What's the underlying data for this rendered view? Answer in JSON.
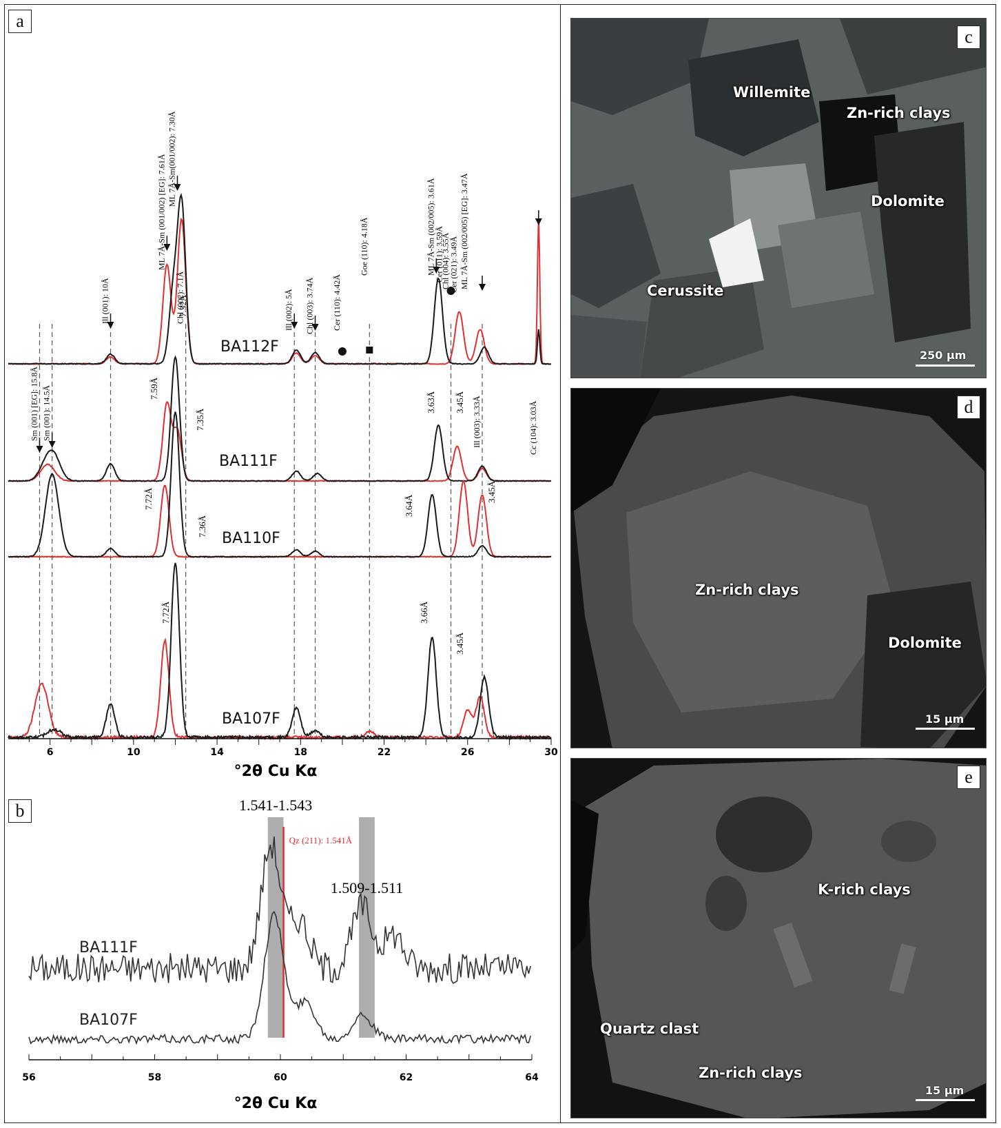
{
  "panel_labels": {
    "a": "a",
    "b": "b",
    "c": "c",
    "d": "d",
    "e": "e"
  },
  "chart_data": [
    {
      "panel": "a",
      "type": "line",
      "xlabel": "°2θ Cu Kα",
      "ylabel": "",
      "xlim": [
        4,
        30
      ],
      "xticks": [
        6,
        10,
        14,
        18,
        22,
        26,
        30
      ],
      "grid": false,
      "colors": {
        "air_dried": "#1a1a1a",
        "glycolated": "#e03030"
      },
      "series": [
        {
          "sample": "BA112F",
          "black_peaks": [
            [
              8.9,
              0.07
            ],
            [
              11.9,
              0.5
            ],
            [
              12.3,
              1.15
            ],
            [
              17.8,
              0.1
            ],
            [
              18.7,
              0.08
            ],
            [
              24.6,
              0.62
            ],
            [
              26.8,
              0.12
            ],
            [
              29.4,
              0.25
            ]
          ],
          "red_peaks": [
            [
              8.9,
              0.05
            ],
            [
              11.6,
              0.72
            ],
            [
              12.3,
              1.05
            ],
            [
              17.8,
              0.08
            ],
            [
              18.7,
              0.06
            ],
            [
              25.6,
              0.38
            ],
            [
              26.6,
              0.25
            ],
            [
              29.4,
              1.05
            ]
          ]
        },
        {
          "sample": "BA111F",
          "black_peaks": [
            [
              5.8,
              0.12
            ],
            [
              6.2,
              0.18
            ],
            [
              8.9,
              0.14
            ],
            [
              12.0,
              1.0
            ],
            [
              17.8,
              0.08
            ],
            [
              18.8,
              0.06
            ],
            [
              24.6,
              0.45
            ],
            [
              26.7,
              0.12
            ]
          ],
          "red_peaks": [
            [
              5.8,
              0.08
            ],
            [
              6.0,
              0.06
            ],
            [
              11.6,
              0.62
            ],
            [
              12.1,
              0.4
            ],
            [
              25.5,
              0.28
            ],
            [
              26.7,
              0.1
            ]
          ]
        },
        {
          "sample": "BA110F",
          "black_peaks": [
            [
              6.1,
              0.6
            ],
            [
              8.9,
              0.06
            ],
            [
              12.0,
              1.05
            ],
            [
              17.8,
              0.05
            ],
            [
              18.7,
              0.04
            ],
            [
              24.3,
              0.45
            ],
            [
              26.7,
              0.08
            ]
          ],
          "red_peaks": [
            [
              11.5,
              0.52
            ],
            [
              25.8,
              0.55
            ],
            [
              26.7,
              0.45
            ]
          ]
        },
        {
          "sample": "BA107F",
          "black_peaks": [
            [
              6.2,
              0.06
            ],
            [
              8.9,
              0.25
            ],
            [
              12.0,
              1.3
            ],
            [
              17.8,
              0.22
            ],
            [
              18.7,
              0.05
            ],
            [
              24.3,
              0.75
            ],
            [
              26.8,
              0.45
            ]
          ],
          "red_peaks": [
            [
              5.6,
              0.4
            ],
            [
              11.5,
              0.72
            ],
            [
              21.3,
              0.05
            ],
            [
              26.0,
              0.2
            ],
            [
              26.6,
              0.3
            ]
          ]
        }
      ],
      "peak_annotations": [
        {
          "x": 8.9,
          "text": "Ill (001): 10Å"
        },
        {
          "x": 11.6,
          "text": "ML 7Å-Sm (001/002) [EG]: 7.61Å"
        },
        {
          "x": 12.1,
          "text": "ML 7Å-Sm(001/002): 7.30Å"
        },
        {
          "x": 12.5,
          "text": "Chl (002): 7.1Å"
        },
        {
          "x": 17.7,
          "text": "Ill (002): 5Å"
        },
        {
          "x": 18.7,
          "text": "Chl (003): 3.74Å"
        },
        {
          "x": 20.0,
          "text": "Cer (110): 4.42Å"
        },
        {
          "x": 21.3,
          "text": "Goe (110): 4.18Å"
        },
        {
          "x": 24.5,
          "text": "ML 7Å-Sm (002/005): 3.61Å"
        },
        {
          "x": 24.9,
          "text": "Cer (011): 3.59Å"
        },
        {
          "x": 25.2,
          "text": "Chl (004): 3.55Å"
        },
        {
          "x": 25.6,
          "text": "Cer (021): 3.49Å"
        },
        {
          "x": 26.1,
          "text": "ML 7Å-Sm (002/005) [EG]: 3.47Å"
        },
        {
          "x": 26.7,
          "text": "Ill (003): 3.33Å"
        },
        {
          "x": 29.4,
          "text": "Cc (104): 3.03Å"
        },
        {
          "x": 5.5,
          "text": "Sm (001) [EG]: 15.8Å"
        },
        {
          "x": 6.1,
          "text": "Sm (001): 14.5Å"
        }
      ],
      "row_annotations": [
        {
          "sample": "BA112F",
          "texts": [
            "7.32Å"
          ]
        },
        {
          "sample": "BA111F",
          "texts": [
            "7.59Å",
            "7.35Å",
            "3.63Å",
            "3.45Å"
          ]
        },
        {
          "sample": "BA110F",
          "texts": [
            "7.72Å",
            "7.36Å",
            "3.64Å",
            "3.45Å"
          ]
        },
        {
          "sample": "BA107F",
          "texts": [
            "7.72Å",
            "3.66Å",
            "3.45Å"
          ]
        }
      ],
      "dashed_lines_x": [
        5.5,
        6.1,
        8.9,
        12.5,
        17.7,
        18.7,
        21.3,
        25.2,
        26.7
      ]
    },
    {
      "panel": "b",
      "type": "line",
      "xlabel": "°2θ Cu Kα",
      "ylabel": "",
      "xlim": [
        56,
        64
      ],
      "xticks": [
        56,
        58,
        60,
        62,
        64
      ],
      "grid": false,
      "series": [
        {
          "sample": "BA111F",
          "peaks": [
            [
              59.85,
              0.9
            ],
            [
              60.3,
              0.35
            ],
            [
              61.3,
              0.45
            ],
            [
              61.8,
              0.25
            ]
          ]
        },
        {
          "sample": "BA107F",
          "peaks": [
            [
              59.9,
              1.0
            ],
            [
              60.4,
              0.3
            ],
            [
              61.3,
              0.2
            ]
          ]
        }
      ],
      "shaded_bands": [
        {
          "x": [
            59.8,
            60.05
          ],
          "label": "1.541-1.543"
        },
        {
          "x": [
            61.25,
            61.5
          ],
          "label": "1.509-1.511"
        }
      ],
      "reference_line": {
        "x": 60.05,
        "label": "Qz (211): 1.541Å",
        "color": "#e03030"
      }
    }
  ],
  "images": {
    "c": {
      "labels": [
        "Willemite",
        "Zn-rich clays",
        "Dolomite",
        "Cerussite"
      ],
      "scale": "250 µm"
    },
    "d": {
      "labels": [
        "Zn-rich clays",
        "Dolomite"
      ],
      "scale": "15 µm"
    },
    "e": {
      "labels": [
        "K-rich clays",
        "Quartz clast",
        "Zn-rich clays"
      ],
      "scale": "15 µm"
    }
  }
}
